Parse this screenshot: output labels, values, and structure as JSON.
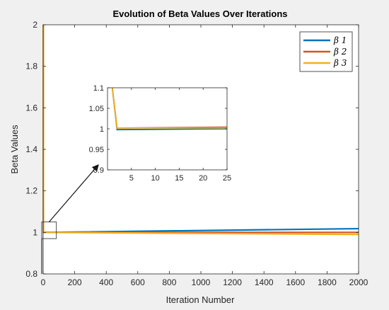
{
  "colors": {
    "figure_bg": "#f0f0f0",
    "axes_bg": "#ffffff",
    "axis": "#262626",
    "beta1": "#0072bd",
    "beta2": "#d95319",
    "beta3": "#edb120"
  },
  "chart_data": [
    {
      "type": "line",
      "title": "Evolution of Beta Values Over Iterations",
      "xlabel": "Iteration Number",
      "ylabel": "Beta Values",
      "xlim": [
        0,
        2000
      ],
      "ylim": [
        0.8,
        2
      ],
      "xticks": [
        0,
        200,
        400,
        600,
        800,
        1000,
        1200,
        1400,
        1600,
        1800,
        2000
      ],
      "yticks": [
        0.8,
        1,
        1.2,
        1.4,
        1.6,
        1.8,
        2
      ],
      "grid": false,
      "legend_position": "top-right",
      "series": [
        {
          "name": "β 1",
          "color": "#0072bd",
          "x": [
            1,
            2,
            2000
          ],
          "y": [
            2,
            1.0,
            1.018
          ]
        },
        {
          "name": "β 2",
          "color": "#d95319",
          "x": [
            1,
            2,
            2000
          ],
          "y": [
            2,
            1.0,
            1.0
          ]
        },
        {
          "name": "β 3",
          "color": "#edb120",
          "x": [
            1,
            2,
            2000
          ],
          "y": [
            2,
            1.0,
            0.99
          ]
        }
      ]
    },
    {
      "type": "line",
      "title": "",
      "xlabel": "",
      "ylabel": "",
      "xlim": [
        0,
        25
      ],
      "ylim": [
        0.9,
        1.1
      ],
      "xticks": [
        5,
        10,
        15,
        20,
        25
      ],
      "yticks": [
        0.9,
        0.95,
        1,
        1.05,
        1.1
      ],
      "grid": false,
      "series": [
        {
          "name": "β 1",
          "color": "#0072bd",
          "x": [
            1,
            2,
            25
          ],
          "y": [
            1.1,
            0.998,
            1.0
          ]
        },
        {
          "name": "β 2",
          "color": "#d95319",
          "x": [
            1,
            2,
            25
          ],
          "y": [
            1.1,
            1.002,
            1.004
          ]
        },
        {
          "name": "β 3",
          "color": "#edb120",
          "x": [
            1,
            2,
            25
          ],
          "y": [
            1.1,
            1.002,
            1.002
          ]
        }
      ]
    }
  ]
}
